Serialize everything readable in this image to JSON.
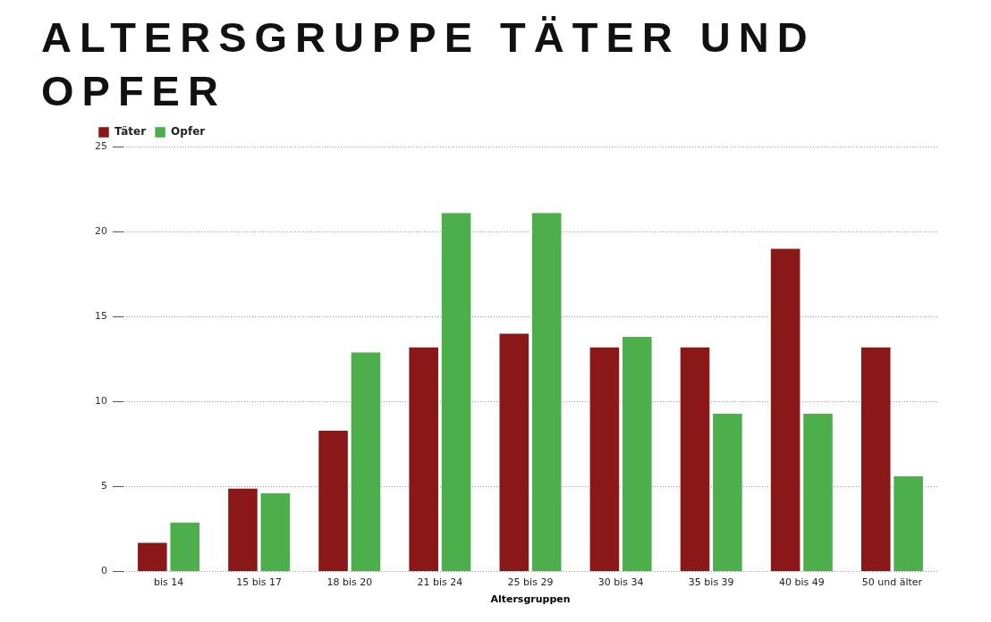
{
  "chart_data": {
    "type": "bar",
    "title": "ALTERSGRUPPE TÄTER UND OPFER",
    "xlabel": "Altersgruppen",
    "categories": [
      "bis 14",
      "15 bis 17",
      "18 bis 20",
      "21 bis 24",
      "25 bis 29",
      "30 bis 34",
      "35 bis 39",
      "40 bis 49",
      "50 und älter"
    ],
    "series": [
      {
        "name": "Täter",
        "color": "#8b1818",
        "values": [
          1.7,
          4.9,
          8.3,
          13.2,
          14.0,
          13.2,
          13.2,
          19.0,
          13.2
        ]
      },
      {
        "name": "Opfer",
        "color": "#4caf4c",
        "values": [
          2.9,
          4.6,
          12.9,
          21.1,
          21.1,
          13.8,
          9.3,
          9.3,
          5.6
        ]
      }
    ],
    "ylim": [
      0,
      25
    ],
    "yticks": [
      0,
      5,
      10,
      15,
      20,
      25
    ],
    "grid": "y",
    "legend": "top left"
  }
}
